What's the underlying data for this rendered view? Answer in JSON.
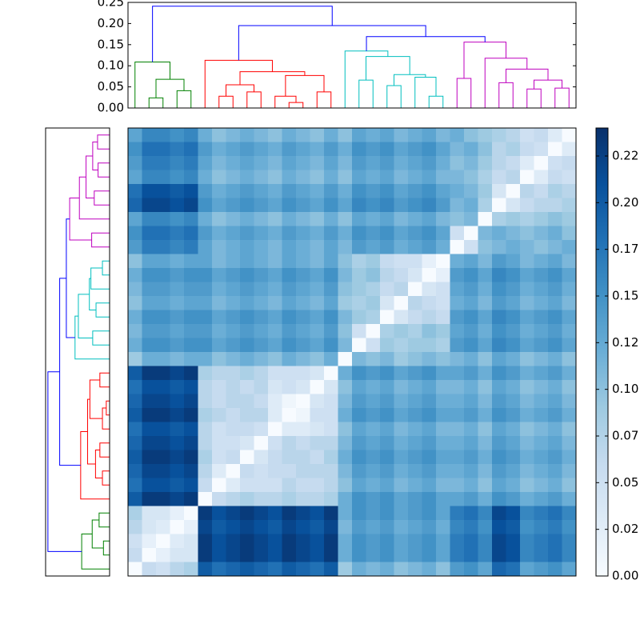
{
  "chart_data": {
    "type": "clustermap",
    "z": [
      [
        0.13,
        0.16,
        0.16,
        0.15,
        0.16,
        0.12,
        0.1,
        0.11,
        0.12,
        0.11,
        0.1,
        0.12,
        0.11,
        0.1,
        0.12,
        0.1,
        0.13,
        0.12,
        0.13,
        0.11,
        0.12,
        0.13,
        0.11,
        0.12,
        0.1,
        0.09,
        0.08,
        0.07,
        0.05,
        0.06,
        0.03,
        0
      ],
      [
        0.15,
        0.18,
        0.18,
        0.17,
        0.18,
        0.14,
        0.12,
        0.13,
        0.14,
        0.13,
        0.12,
        0.14,
        0.13,
        0.12,
        0.14,
        0.12,
        0.15,
        0.14,
        0.15,
        0.13,
        0.14,
        0.15,
        0.13,
        0.11,
        0.12,
        0.1,
        0.07,
        0.08,
        0.06,
        0.05,
        0,
        0.03
      ],
      [
        0.14,
        0.17,
        0.17,
        0.16,
        0.17,
        0.13,
        0.11,
        0.12,
        0.13,
        0.12,
        0.11,
        0.13,
        0.12,
        0.11,
        0.13,
        0.11,
        0.14,
        0.13,
        0.14,
        0.12,
        0.13,
        0.14,
        0.12,
        0.1,
        0.11,
        0.09,
        0.07,
        0.06,
        0.03,
        0,
        0.05,
        0.06
      ],
      [
        0.13,
        0.16,
        0.16,
        0.15,
        0.16,
        0.12,
        0.1,
        0.11,
        0.12,
        0.11,
        0.1,
        0.12,
        0.11,
        0.1,
        0.12,
        0.1,
        0.13,
        0.12,
        0.13,
        0.11,
        0.12,
        0.13,
        0.11,
        0.11,
        0.1,
        0.08,
        0.06,
        0.07,
        0,
        0.03,
        0.06,
        0.05
      ],
      [
        0.18,
        0.21,
        0.21,
        0.2,
        0.21,
        0.14,
        0.12,
        0.13,
        0.14,
        0.13,
        0.12,
        0.14,
        0.13,
        0.12,
        0.14,
        0.12,
        0.15,
        0.14,
        0.15,
        0.13,
        0.14,
        0.15,
        0.13,
        0.12,
        0.11,
        0.09,
        0.04,
        0,
        0.07,
        0.06,
        0.08,
        0.07
      ],
      [
        0.19,
        0.22,
        0.22,
        0.21,
        0.22,
        0.15,
        0.13,
        0.14,
        0.15,
        0.14,
        0.13,
        0.15,
        0.14,
        0.13,
        0.15,
        0.13,
        0.16,
        0.15,
        0.16,
        0.14,
        0.15,
        0.16,
        0.14,
        0.11,
        0.12,
        0.08,
        0,
        0.04,
        0.06,
        0.07,
        0.07,
        0.08
      ],
      [
        0.13,
        0.16,
        0.16,
        0.15,
        0.16,
        0.12,
        0.1,
        0.11,
        0.12,
        0.11,
        0.1,
        0.12,
        0.11,
        0.1,
        0.12,
        0.1,
        0.13,
        0.12,
        0.13,
        0.11,
        0.12,
        0.13,
        0.11,
        0.1,
        0.11,
        0,
        0.08,
        0.09,
        0.08,
        0.09,
        0.1,
        0.09
      ],
      [
        0.15,
        0.18,
        0.18,
        0.17,
        0.18,
        0.14,
        0.12,
        0.13,
        0.14,
        0.13,
        0.12,
        0.14,
        0.13,
        0.12,
        0.14,
        0.12,
        0.15,
        0.14,
        0.15,
        0.13,
        0.14,
        0.15,
        0.13,
        0.05,
        0,
        0.11,
        0.12,
        0.11,
        0.1,
        0.11,
        0.12,
        0.1
      ],
      [
        0.14,
        0.17,
        0.17,
        0.16,
        0.17,
        0.13,
        0.11,
        0.12,
        0.13,
        0.12,
        0.11,
        0.13,
        0.12,
        0.11,
        0.13,
        0.11,
        0.14,
        0.13,
        0.14,
        0.12,
        0.13,
        0.14,
        0.12,
        0,
        0.05,
        0.1,
        0.11,
        0.12,
        0.11,
        0.1,
        0.11,
        0.12
      ],
      [
        0.1,
        0.13,
        0.13,
        0.12,
        0.13,
        0.13,
        0.11,
        0.12,
        0.13,
        0.12,
        0.11,
        0.13,
        0.12,
        0.11,
        0.13,
        0.1,
        0.08,
        0.09,
        0.06,
        0.05,
        0.05,
        0.02,
        0,
        0.12,
        0.13,
        0.11,
        0.14,
        0.13,
        0.11,
        0.12,
        0.13,
        0.11
      ],
      [
        0.12,
        0.15,
        0.15,
        0.14,
        0.15,
        0.15,
        0.13,
        0.14,
        0.15,
        0.14,
        0.13,
        0.15,
        0.14,
        0.13,
        0.15,
        0.11,
        0.09,
        0.1,
        0.07,
        0.06,
        0.04,
        0,
        0.02,
        0.14,
        0.15,
        0.13,
        0.16,
        0.15,
        0.13,
        0.14,
        0.15,
        0.13
      ],
      [
        0.11,
        0.14,
        0.14,
        0.13,
        0.14,
        0.14,
        0.12,
        0.13,
        0.14,
        0.13,
        0.12,
        0.14,
        0.13,
        0.12,
        0.14,
        0.1,
        0.09,
        0.08,
        0.06,
        0.07,
        0,
        0.04,
        0.05,
        0.13,
        0.14,
        0.12,
        0.15,
        0.14,
        0.12,
        0.13,
        0.14,
        0.12
      ],
      [
        0.1,
        0.13,
        0.13,
        0.12,
        0.13,
        0.13,
        0.11,
        0.12,
        0.13,
        0.12,
        0.11,
        0.13,
        0.12,
        0.11,
        0.13,
        0.09,
        0.08,
        0.09,
        0.04,
        0,
        0.07,
        0.06,
        0.05,
        0.12,
        0.13,
        0.11,
        0.14,
        0.13,
        0.11,
        0.12,
        0.13,
        0.11
      ],
      [
        0.12,
        0.15,
        0.15,
        0.14,
        0.15,
        0.15,
        0.13,
        0.14,
        0.15,
        0.14,
        0.13,
        0.15,
        0.14,
        0.13,
        0.15,
        0.11,
        0.09,
        0.08,
        0,
        0.04,
        0.06,
        0.07,
        0.06,
        0.14,
        0.15,
        0.13,
        0.16,
        0.15,
        0.13,
        0.14,
        0.15,
        0.13
      ],
      [
        0.11,
        0.14,
        0.14,
        0.13,
        0.14,
        0.14,
        0.12,
        0.13,
        0.14,
        0.13,
        0.12,
        0.14,
        0.13,
        0.12,
        0.14,
        0.1,
        0.05,
        0,
        0.08,
        0.09,
        0.08,
        0.1,
        0.09,
        0.13,
        0.14,
        0.12,
        0.15,
        0.14,
        0.12,
        0.13,
        0.14,
        0.12
      ],
      [
        0.12,
        0.15,
        0.15,
        0.14,
        0.15,
        0.15,
        0.13,
        0.14,
        0.15,
        0.14,
        0.13,
        0.15,
        0.14,
        0.13,
        0.15,
        0.11,
        0,
        0.05,
        0.09,
        0.08,
        0.09,
        0.09,
        0.08,
        0.14,
        0.15,
        0.13,
        0.16,
        0.15,
        0.13,
        0.14,
        0.15,
        0.13
      ],
      [
        0.09,
        0.12,
        0.12,
        0.11,
        0.12,
        0.12,
        0.1,
        0.11,
        0.12,
        0.11,
        0.1,
        0.12,
        0.11,
        0.1,
        0.12,
        0,
        0.11,
        0.1,
        0.11,
        0.09,
        0.1,
        0.11,
        0.1,
        0.11,
        0.12,
        0.1,
        0.13,
        0.12,
        0.1,
        0.11,
        0.12,
        0.1
      ],
      [
        0.2,
        0.23,
        0.23,
        0.22,
        0.23,
        0.08,
        0.07,
        0.07,
        0.08,
        0.07,
        0.05,
        0.05,
        0.05,
        0.04,
        0,
        0.12,
        0.15,
        0.14,
        0.15,
        0.13,
        0.14,
        0.15,
        0.13,
        0.13,
        0.14,
        0.12,
        0.15,
        0.14,
        0.12,
        0.13,
        0.14,
        0.12
      ],
      [
        0.18,
        0.21,
        0.21,
        0.2,
        0.21,
        0.07,
        0.06,
        0.07,
        0.06,
        0.07,
        0.04,
        0.05,
        0.04,
        0,
        0.04,
        0.1,
        0.13,
        0.12,
        0.13,
        0.11,
        0.12,
        0.13,
        0.11,
        0.11,
        0.12,
        0.1,
        0.13,
        0.12,
        0.1,
        0.11,
        0.12,
        0.1
      ],
      [
        0.19,
        0.22,
        0.22,
        0.21,
        0.22,
        0.07,
        0.06,
        0.07,
        0.07,
        0.06,
        0.03,
        0.01,
        0,
        0.04,
        0.05,
        0.11,
        0.14,
        0.13,
        0.14,
        0.12,
        0.13,
        0.14,
        0.12,
        0.12,
        0.13,
        0.11,
        0.14,
        0.13,
        0.11,
        0.12,
        0.13,
        0.11
      ],
      [
        0.2,
        0.23,
        0.23,
        0.22,
        0.23,
        0.08,
        0.07,
        0.06,
        0.07,
        0.07,
        0.03,
        0,
        0.01,
        0.05,
        0.05,
        0.12,
        0.15,
        0.14,
        0.15,
        0.13,
        0.14,
        0.15,
        0.13,
        0.13,
        0.14,
        0.12,
        0.15,
        0.14,
        0.12,
        0.13,
        0.14,
        0.12
      ],
      [
        0.18,
        0.21,
        0.21,
        0.2,
        0.21,
        0.07,
        0.05,
        0.06,
        0.06,
        0.05,
        0,
        0.03,
        0.03,
        0.04,
        0.05,
        0.1,
        0.13,
        0.12,
        0.13,
        0.11,
        0.12,
        0.13,
        0.11,
        0.11,
        0.12,
        0.1,
        0.13,
        0.12,
        0.1,
        0.11,
        0.12,
        0.1
      ],
      [
        0.19,
        0.22,
        0.22,
        0.21,
        0.22,
        0.07,
        0.05,
        0.05,
        0.04,
        0,
        0.05,
        0.07,
        0.06,
        0.07,
        0.07,
        0.11,
        0.14,
        0.13,
        0.14,
        0.12,
        0.13,
        0.14,
        0.12,
        0.12,
        0.13,
        0.11,
        0.14,
        0.13,
        0.11,
        0.12,
        0.13,
        0.11
      ],
      [
        0.2,
        0.23,
        0.23,
        0.22,
        0.23,
        0.08,
        0.05,
        0.06,
        0,
        0.04,
        0.06,
        0.07,
        0.07,
        0.06,
        0.08,
        0.12,
        0.15,
        0.14,
        0.15,
        0.13,
        0.14,
        0.15,
        0.13,
        0.13,
        0.14,
        0.12,
        0.15,
        0.14,
        0.12,
        0.13,
        0.14,
        0.12
      ],
      [
        0.19,
        0.22,
        0.22,
        0.21,
        0.22,
        0.07,
        0.03,
        0,
        0.06,
        0.05,
        0.06,
        0.06,
        0.07,
        0.07,
        0.07,
        0.11,
        0.14,
        0.13,
        0.14,
        0.12,
        0.13,
        0.14,
        0.12,
        0.12,
        0.13,
        0.11,
        0.14,
        0.13,
        0.11,
        0.12,
        0.13,
        0.11
      ],
      [
        0.18,
        0.21,
        0.21,
        0.2,
        0.21,
        0.06,
        0,
        0.03,
        0.05,
        0.05,
        0.05,
        0.07,
        0.06,
        0.06,
        0.07,
        0.1,
        0.13,
        0.12,
        0.13,
        0.11,
        0.12,
        0.13,
        0.11,
        0.11,
        0.12,
        0.1,
        0.13,
        0.12,
        0.1,
        0.11,
        0.12,
        0.1
      ],
      [
        0.2,
        0.23,
        0.23,
        0.22,
        0.23,
        0,
        0.06,
        0.07,
        0.08,
        0.07,
        0.07,
        0.08,
        0.07,
        0.07,
        0.08,
        0.12,
        0.15,
        0.14,
        0.15,
        0.13,
        0.14,
        0.15,
        0.13,
        0.13,
        0.14,
        0.12,
        0.15,
        0.14,
        0.12,
        0.13,
        0.14,
        0.12
      ],
      [
        0.08,
        0.04,
        0.04,
        0.02,
        0,
        0.23,
        0.21,
        0.22,
        0.23,
        0.22,
        0.21,
        0.23,
        0.22,
        0.21,
        0.23,
        0.12,
        0.15,
        0.14,
        0.15,
        0.13,
        0.14,
        0.15,
        0.13,
        0.17,
        0.18,
        0.16,
        0.22,
        0.21,
        0.16,
        0.17,
        0.18,
        0.16
      ],
      [
        0.07,
        0.04,
        0.03,
        0,
        0.02,
        0.22,
        0.2,
        0.21,
        0.22,
        0.21,
        0.2,
        0.22,
        0.21,
        0.2,
        0.22,
        0.11,
        0.14,
        0.13,
        0.14,
        0.12,
        0.13,
        0.14,
        0.12,
        0.16,
        0.17,
        0.15,
        0.21,
        0.2,
        0.15,
        0.16,
        0.17,
        0.15
      ],
      [
        0.05,
        0.02,
        0,
        0.03,
        0.04,
        0.23,
        0.21,
        0.22,
        0.23,
        0.22,
        0.21,
        0.23,
        0.22,
        0.21,
        0.23,
        0.12,
        0.15,
        0.14,
        0.15,
        0.13,
        0.14,
        0.15,
        0.13,
        0.17,
        0.18,
        0.16,
        0.22,
        0.21,
        0.16,
        0.17,
        0.18,
        0.16
      ],
      [
        0.06,
        0,
        0.02,
        0.04,
        0.04,
        0.23,
        0.21,
        0.22,
        0.23,
        0.22,
        0.21,
        0.23,
        0.22,
        0.21,
        0.23,
        0.12,
        0.15,
        0.14,
        0.15,
        0.13,
        0.14,
        0.15,
        0.13,
        0.17,
        0.18,
        0.16,
        0.22,
        0.21,
        0.16,
        0.17,
        0.18,
        0.16
      ],
      [
        0,
        0.06,
        0.05,
        0.07,
        0.08,
        0.2,
        0.18,
        0.19,
        0.2,
        0.19,
        0.18,
        0.2,
        0.19,
        0.18,
        0.2,
        0.09,
        0.12,
        0.11,
        0.12,
        0.1,
        0.11,
        0.12,
        0.1,
        0.14,
        0.15,
        0.13,
        0.19,
        0.18,
        0.13,
        0.14,
        0.15,
        0.13
      ]
    ],
    "colormap": [
      "#f7fbff",
      "#deebf7",
      "#c6dbef",
      "#9ecae1",
      "#6baed6",
      "#4292c6",
      "#2171b5",
      "#08519c",
      "#08306b"
    ],
    "vlim": [
      0,
      0.24
    ],
    "cticks": [
      {
        "value": 0,
        "label": "0.00"
      },
      {
        "value": 0.025,
        "label": "0.02"
      },
      {
        "value": 0.05,
        "label": "0.05"
      },
      {
        "value": 0.075,
        "label": "0.07"
      },
      {
        "value": 0.1,
        "label": "0.10"
      },
      {
        "value": 0.125,
        "label": "0.12"
      },
      {
        "value": 0.15,
        "label": "0.15"
      },
      {
        "value": 0.175,
        "label": "0.17"
      },
      {
        "value": 0.2,
        "label": "0.20"
      },
      {
        "value": 0.225,
        "label": "0.22"
      }
    ],
    "dendrogram_lim": [
      0,
      0.25
    ],
    "dendrogram_ticks": [
      {
        "value": 0,
        "label": "0.00"
      },
      {
        "value": 0.05,
        "label": "0.05"
      },
      {
        "value": 0.1,
        "label": "0.10"
      },
      {
        "value": 0.15,
        "label": "0.15"
      },
      {
        "value": 0.2,
        "label": "0.20"
      },
      {
        "value": 0.25,
        "label": "0.25"
      }
    ],
    "tree": {
      "height": 0.241,
      "color": "#0000ff",
      "left": {
        "height": 0.109,
        "color": "#008000",
        "right": {
          "height": 0.068,
          "color": "#008000",
          "left": {
            "height": 0.024,
            "color": "#008000"
          },
          "right": {
            "height": 0.041,
            "color": "#008000"
          }
        }
      },
      "right": {
        "height": 0.195,
        "color": "#0000ff",
        "left": {
          "height": 0.113,
          "color": "#ff0000",
          "right": {
            "height": 0.086,
            "color": "#ff0000",
            "left": {
              "height": 0.055,
              "color": "#ff0000",
              "left": {
                "height": 0.028,
                "color": "#ff0000"
              },
              "right": {
                "height": 0.038,
                "color": "#ff0000"
              }
            },
            "right": {
              "height": 0.077,
              "color": "#ff0000",
              "left": {
                "height": 0.028,
                "color": "#ff0000",
                "right": {
                  "height": 0.013,
                  "color": "#ff0000"
                }
              },
              "right": {
                "height": 0.038,
                "color": "#ff0000"
              }
            }
          }
        },
        "right": {
          "height": 0.169,
          "color": "#0000ff",
          "left": {
            "height": 0.135,
            "color": "#00bfbf",
            "right": {
              "height": 0.122,
              "color": "#00bfbf",
              "left": {
                "height": 0.066,
                "color": "#00bfbf"
              },
              "right": {
                "height": 0.079,
                "color": "#00bfbf",
                "left": {
                  "height": 0.053,
                  "color": "#00bfbf"
                },
                "right": {
                  "height": 0.073,
                  "color": "#00bfbf",
                  "right": {
                    "height": 0.028,
                    "color": "#00bfbf"
                  }
                }
              }
            }
          },
          "right": {
            "height": 0.156,
            "color": "#bf00bf",
            "left": {
              "height": 0.07,
              "color": "#bf00bf"
            },
            "right": {
              "height": 0.118,
              "color": "#bf00bf",
              "right": {
                "height": 0.092,
                "color": "#bf00bf",
                "left": {
                  "height": 0.06,
                  "color": "#bf00bf"
                },
                "right": {
                  "height": 0.066,
                  "color": "#bf00bf",
                  "left": {
                    "height": 0.045,
                    "color": "#bf00bf"
                  },
                  "right": {
                    "height": 0.047,
                    "color": "#bf00bf"
                  }
                }
              }
            }
          }
        }
      }
    }
  }
}
